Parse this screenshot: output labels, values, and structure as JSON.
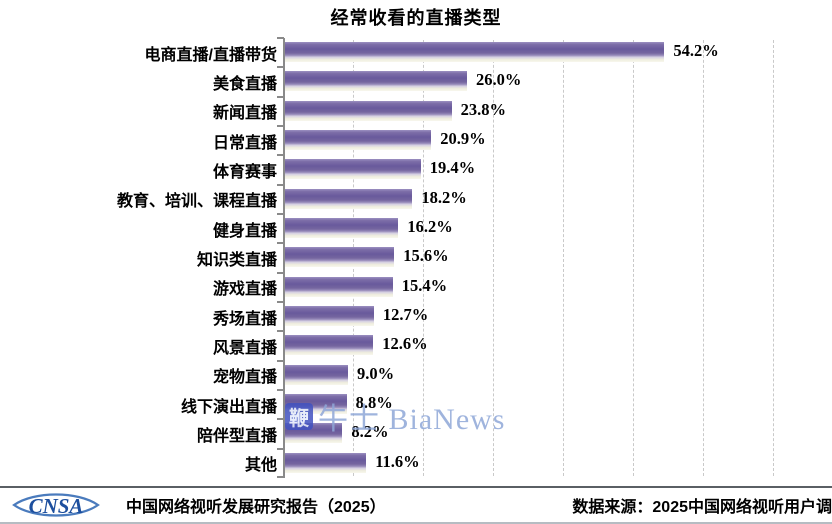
{
  "title": "经常收看的直播类型",
  "chart_data": {
    "type": "bar",
    "orientation": "horizontal",
    "title": "经常收看的直播类型",
    "categories": [
      "电商直播/直播带货",
      "美食直播",
      "新闻直播",
      "日常直播",
      "体育赛事",
      "教育、培训、课程直播",
      "健身直播",
      "知识类直播",
      "游戏直播",
      "秀场直播",
      "风景直播",
      "宠物直播",
      "线下演出直播",
      "陪伴型直播",
      "其他"
    ],
    "values": [
      54.2,
      26.0,
      23.8,
      20.9,
      19.4,
      18.2,
      16.2,
      15.6,
      15.4,
      12.7,
      12.6,
      9.0,
      8.8,
      8.2,
      11.6
    ],
    "value_labels": [
      "54.2%",
      "26.0%",
      "23.8%",
      "20.9%",
      "19.4%",
      "18.2%",
      "16.2%",
      "15.6%",
      "15.4%",
      "12.7%",
      "12.6%",
      "9.0%",
      "8.8%",
      "8.2%",
      "11.6%"
    ],
    "unit": "%",
    "xlim": [
      0,
      70
    ],
    "gridline_step": 10,
    "grid": true,
    "bar_color": "#75659f",
    "gridline_color": "#c9c9c9"
  },
  "watermark": {
    "boxed_char": "鞭",
    "text": "牛士 BiaNews"
  },
  "footer": {
    "logo_text": "CNSA",
    "logo_color": "#1d4f9e",
    "report": "中国网络视听发展研究报告（2025）",
    "source": "数据来源：2025中国网络视听用户调"
  }
}
